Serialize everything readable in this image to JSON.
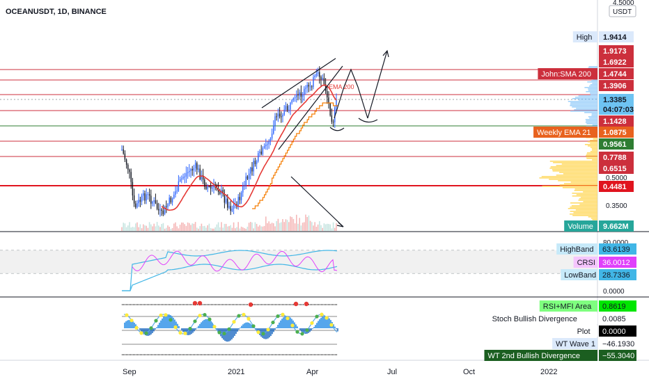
{
  "header": {
    "symbol": "OCEANUSDT, 1D, BINANCE",
    "currency": "USDT"
  },
  "price_axis": {
    "ticks": [
      "4.5000",
      "0.5000",
      "0.3500"
    ],
    "labels": [
      {
        "key": "high",
        "name": "High",
        "value": "1.9414",
        "bg": "#dbe9fb",
        "fg": "#131722",
        "nameBg": "#dbe9fb"
      },
      {
        "key": "l19173",
        "value": "1.9173",
        "bg": "#cc2f3c",
        "fg": "#ffffff"
      },
      {
        "key": "l16922",
        "value": "1.6922",
        "bg": "#cc2f3c",
        "fg": "#ffffff"
      },
      {
        "key": "sma200",
        "name": "John:SMA 200",
        "value": "1.4744",
        "bg": "#cc2f3c",
        "fg": "#ffffff",
        "nameBg": "#cc2f3c"
      },
      {
        "key": "l13906",
        "value": "1.3906",
        "bg": "#cc2f3c",
        "fg": "#ffffff"
      },
      {
        "key": "last",
        "value": "1.3385",
        "bg": "#6ec3f2",
        "fg": "#131722"
      },
      {
        "key": "countdown",
        "value": "04:07:03",
        "bg": "#6ec3f2",
        "fg": "#131722"
      },
      {
        "key": "l11428",
        "value": "1.1428",
        "bg": "#cc2f3c",
        "fg": "#ffffff"
      },
      {
        "key": "wema21",
        "name": "Weekly EMA 21",
        "value": "1.0875",
        "bg": "#e8621e",
        "fg": "#ffffff",
        "nameBg": "#e8621e"
      },
      {
        "key": "l09561",
        "value": "0.9561",
        "bg": "#2e7d32",
        "fg": "#ffffff"
      },
      {
        "key": "l07788",
        "value": "0.7788",
        "bg": "#cc2f3c",
        "fg": "#ffffff"
      },
      {
        "key": "l06515",
        "value": "0.6515",
        "bg": "#cc2f3c",
        "fg": "#ffffff"
      },
      {
        "key": "l04481",
        "value": "0.4481",
        "bg": "#e0141e",
        "fg": "#ffffff"
      },
      {
        "key": "volume",
        "name": "Volume",
        "value": "9.662M",
        "bg": "#26a69a",
        "fg": "#ffffff",
        "nameBg": "#26a69a"
      }
    ]
  },
  "chart_annotation": "EMA 200",
  "crsi": {
    "ticks": [
      "80.0000",
      "0.0000"
    ],
    "labels": [
      {
        "name": "HighBand",
        "value": "63.6139",
        "bg": "#41b6e6",
        "fg": "#131722",
        "nameBg": "#c6e9f9"
      },
      {
        "name": "CRSI",
        "value": "36.0012",
        "bg": "#e040fb",
        "fg": "#ffffff",
        "nameBg": "#f5c5fd"
      },
      {
        "name": "LowBand",
        "value": "28.7336",
        "bg": "#41b6e6",
        "fg": "#131722",
        "nameBg": "#c6e9f9"
      }
    ]
  },
  "wavetrend": {
    "labels": [
      {
        "name": "RSI+MFI Area",
        "value": "0.8619",
        "bg": "#00e600",
        "fg": "#131722",
        "nameBg": "#7fff7f"
      },
      {
        "name": "Stoch Bullish Divergence",
        "value": "0.0085",
        "bg": "#ffffff",
        "fg": "#131722",
        "nameBg": "#ffffff"
      },
      {
        "name": "Plot",
        "value": "0.0000",
        "bg": "#000000",
        "fg": "#ffffff",
        "nameBg": "#ffffff"
      },
      {
        "name": "WT Wave 1",
        "value": "−46.1930",
        "bg": "#ffffff",
        "fg": "#131722",
        "nameBg": "#dbe9fb"
      },
      {
        "name": "WT 2nd Bullish Divergence",
        "value": "−55.3040",
        "bg": "#1b5e20",
        "fg": "#ffffff",
        "nameBg": "#1b5e20"
      }
    ]
  },
  "time_axis": {
    "ticks": [
      "Sep",
      "2021",
      "Apr",
      "Jul",
      "Oct",
      "2022"
    ]
  },
  "colors": {
    "up": "#2962ff",
    "down": "#131722",
    "sma": "#e53935",
    "ema": "#f57c00",
    "crsi": "#e040fb",
    "band": "#41b6e6"
  }
}
